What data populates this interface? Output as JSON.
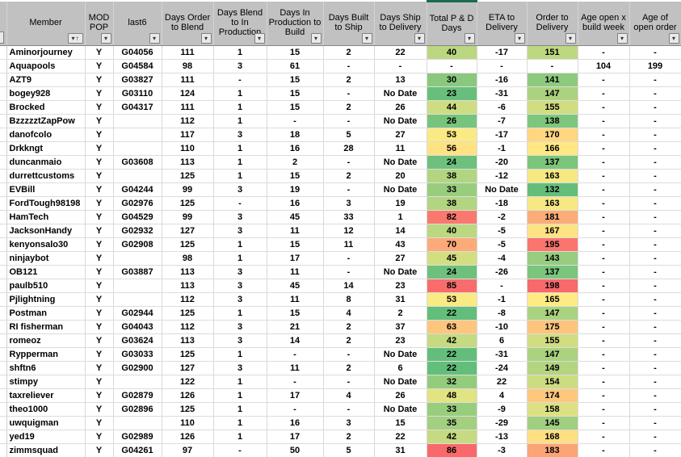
{
  "sheet": {
    "filter_icon": "▾",
    "sort_asc_icon": "↑",
    "color_scale": {
      "min_color": "#63BE7B",
      "mid_color": "#FFEB84",
      "max_color": "#F8696B",
      "header_accent": "#1d6b53",
      "ranges": {
        "total_pd": {
          "min": 22,
          "max": 86
        },
        "order_del": {
          "min": 132,
          "max": 198
        }
      }
    },
    "columns": [
      {
        "key": "member",
        "label": "Member",
        "sorted": true
      },
      {
        "key": "mod_pop",
        "label": "MOD POP"
      },
      {
        "key": "last6",
        "label": "last6"
      },
      {
        "key": "d_order_blend",
        "label": "Days Order to Blend"
      },
      {
        "key": "d_blend_prod",
        "label": "Days Blend to In Production"
      },
      {
        "key": "d_prod_build",
        "label": "Days In Production to Build"
      },
      {
        "key": "d_built_ship",
        "label": "Days Built to Ship"
      },
      {
        "key": "d_ship_del",
        "label": "Days Ship to Delivery"
      },
      {
        "key": "total_pd",
        "label": "Total P & D Days"
      },
      {
        "key": "eta_del",
        "label": "ETA to Delivery"
      },
      {
        "key": "order_del",
        "label": "Order to Delivery"
      },
      {
        "key": "age_build",
        "label": "Age open x build week"
      },
      {
        "key": "age_order",
        "label": "Age of open order"
      }
    ],
    "rows": [
      {
        "member": "Aminorjourney",
        "mod_pop": "Y",
        "last6": "G04056",
        "d_order_blend": 111,
        "d_blend_prod": 1,
        "d_prod_build": 15,
        "d_built_ship": 2,
        "d_ship_del": 22,
        "total_pd": 40,
        "eta_del": -17,
        "order_del": 151,
        "age_build": "-",
        "age_order": "-"
      },
      {
        "member": "Aquapools",
        "mod_pop": "Y",
        "last6": "G04584",
        "d_order_blend": 98,
        "d_blend_prod": 3,
        "d_prod_build": 61,
        "d_built_ship": "-",
        "d_ship_del": "-",
        "total_pd": "-",
        "eta_del": "-",
        "order_del": "-",
        "age_build": 104,
        "age_order": 199
      },
      {
        "member": "AZT9",
        "mod_pop": "Y",
        "last6": "G03827",
        "d_order_blend": 111,
        "d_blend_prod": "-",
        "d_prod_build": 15,
        "d_built_ship": 2,
        "d_ship_del": 13,
        "total_pd": 30,
        "eta_del": -16,
        "order_del": 141,
        "age_build": "-",
        "age_order": "-"
      },
      {
        "member": "bogey928",
        "mod_pop": "Y",
        "last6": "G03110",
        "d_order_blend": 124,
        "d_blend_prod": 1,
        "d_prod_build": 15,
        "d_built_ship": "-",
        "d_ship_del": "No Date",
        "total_pd": 23,
        "eta_del": -31,
        "order_del": 147,
        "age_build": "-",
        "age_order": "-"
      },
      {
        "member": "Brocked",
        "mod_pop": "Y",
        "last6": "G04317",
        "d_order_blend": 111,
        "d_blend_prod": 1,
        "d_prod_build": 15,
        "d_built_ship": 2,
        "d_ship_del": 26,
        "total_pd": 44,
        "eta_del": -6,
        "order_del": 155,
        "age_build": "-",
        "age_order": "-"
      },
      {
        "member": "BzzzzztZapPow",
        "mod_pop": "Y",
        "last6": "",
        "d_order_blend": 112,
        "d_blend_prod": 1,
        "d_prod_build": "-",
        "d_built_ship": "-",
        "d_ship_del": "No Date",
        "total_pd": 26,
        "eta_del": -7,
        "order_del": 138,
        "age_build": "-",
        "age_order": "-"
      },
      {
        "member": "danofcolo",
        "mod_pop": "Y",
        "last6": "",
        "d_order_blend": 117,
        "d_blend_prod": 3,
        "d_prod_build": 18,
        "d_built_ship": 5,
        "d_ship_del": 27,
        "total_pd": 53,
        "eta_del": -17,
        "order_del": 170,
        "age_build": "-",
        "age_order": "-"
      },
      {
        "member": "Drkkngt",
        "mod_pop": "Y",
        "last6": "",
        "d_order_blend": 110,
        "d_blend_prod": 1,
        "d_prod_build": 16,
        "d_built_ship": 28,
        "d_ship_del": 11,
        "total_pd": 56,
        "eta_del": -1,
        "order_del": 166,
        "age_build": "-",
        "age_order": "-"
      },
      {
        "member": "duncanmaio",
        "mod_pop": "Y",
        "last6": "G03608",
        "d_order_blend": 113,
        "d_blend_prod": 1,
        "d_prod_build": 2,
        "d_built_ship": "-",
        "d_ship_del": "No Date",
        "total_pd": 24,
        "eta_del": -20,
        "order_del": 137,
        "age_build": "-",
        "age_order": "-"
      },
      {
        "member": "durrettcustoms",
        "mod_pop": "Y",
        "last6": "",
        "d_order_blend": 125,
        "d_blend_prod": 1,
        "d_prod_build": 15,
        "d_built_ship": 2,
        "d_ship_del": 20,
        "total_pd": 38,
        "eta_del": -12,
        "order_del": 163,
        "age_build": "-",
        "age_order": "-"
      },
      {
        "member": "EVBill",
        "mod_pop": "Y",
        "last6": "G04244",
        "d_order_blend": 99,
        "d_blend_prod": 3,
        "d_prod_build": 19,
        "d_built_ship": "-",
        "d_ship_del": "No Date",
        "total_pd": 33,
        "eta_del": "No Date",
        "order_del": 132,
        "age_build": "-",
        "age_order": "-"
      },
      {
        "member": "FordTough98198",
        "mod_pop": "Y",
        "last6": "G02976",
        "d_order_blend": 125,
        "d_blend_prod": "-",
        "d_prod_build": 16,
        "d_built_ship": 3,
        "d_ship_del": 19,
        "total_pd": 38,
        "eta_del": -18,
        "order_del": 163,
        "age_build": "-",
        "age_order": "-"
      },
      {
        "member": "HamTech",
        "mod_pop": "Y",
        "last6": "G04529",
        "d_order_blend": 99,
        "d_blend_prod": 3,
        "d_prod_build": 45,
        "d_built_ship": 33,
        "d_ship_del": 1,
        "total_pd": 82,
        "eta_del": -2,
        "order_del": 181,
        "age_build": "-",
        "age_order": "-"
      },
      {
        "member": "JacksonHandy",
        "mod_pop": "Y",
        "last6": "G02932",
        "d_order_blend": 127,
        "d_blend_prod": 3,
        "d_prod_build": 11,
        "d_built_ship": 12,
        "d_ship_del": 14,
        "total_pd": 40,
        "eta_del": -5,
        "order_del": 167,
        "age_build": "-",
        "age_order": "-"
      },
      {
        "member": "kenyonsalo30",
        "mod_pop": "Y",
        "last6": "G02908",
        "d_order_blend": 125,
        "d_blend_prod": 1,
        "d_prod_build": 15,
        "d_built_ship": 11,
        "d_ship_del": 43,
        "total_pd": 70,
        "eta_del": -5,
        "order_del": 195,
        "age_build": "-",
        "age_order": "-"
      },
      {
        "member": "ninjaybot",
        "mod_pop": "Y",
        "last6": "",
        "d_order_blend": 98,
        "d_blend_prod": 1,
        "d_prod_build": 17,
        "d_built_ship": "-",
        "d_ship_del": 27,
        "total_pd": 45,
        "eta_del": -4,
        "order_del": 143,
        "age_build": "-",
        "age_order": "-"
      },
      {
        "member": "OB121",
        "mod_pop": "Y",
        "last6": "G03887",
        "d_order_blend": 113,
        "d_blend_prod": 3,
        "d_prod_build": 11,
        "d_built_ship": "-",
        "d_ship_del": "No Date",
        "total_pd": 24,
        "eta_del": -26,
        "order_del": 137,
        "age_build": "-",
        "age_order": "-"
      },
      {
        "member": "paulb510",
        "mod_pop": "Y",
        "last6": "",
        "d_order_blend": 113,
        "d_blend_prod": 3,
        "d_prod_build": 45,
        "d_built_ship": 14,
        "d_ship_del": 23,
        "total_pd": 85,
        "eta_del": "-",
        "order_del": 198,
        "age_build": "-",
        "age_order": "-"
      },
      {
        "member": "Pjlightning",
        "mod_pop": "Y",
        "last6": "",
        "d_order_blend": 112,
        "d_blend_prod": 3,
        "d_prod_build": 11,
        "d_built_ship": 8,
        "d_ship_del": 31,
        "total_pd": 53,
        "eta_del": -1,
        "order_del": 165,
        "age_build": "-",
        "age_order": "-"
      },
      {
        "member": "Postman",
        "mod_pop": "Y",
        "last6": "G02944",
        "d_order_blend": 125,
        "d_blend_prod": 1,
        "d_prod_build": 15,
        "d_built_ship": 4,
        "d_ship_del": 2,
        "total_pd": 22,
        "eta_del": -8,
        "order_del": 147,
        "age_build": "-",
        "age_order": "-"
      },
      {
        "member": "RI fisherman",
        "mod_pop": "Y",
        "last6": "G04043",
        "d_order_blend": 112,
        "d_blend_prod": 3,
        "d_prod_build": 21,
        "d_built_ship": 2,
        "d_ship_del": 37,
        "total_pd": 63,
        "eta_del": -10,
        "order_del": 175,
        "age_build": "-",
        "age_order": "-"
      },
      {
        "member": "romeoz",
        "mod_pop": "Y",
        "last6": "G03624",
        "d_order_blend": 113,
        "d_blend_prod": 3,
        "d_prod_build": 14,
        "d_built_ship": 2,
        "d_ship_del": 23,
        "total_pd": 42,
        "eta_del": 6,
        "order_del": 155,
        "age_build": "-",
        "age_order": "-"
      },
      {
        "member": "Rypperman",
        "mod_pop": "Y",
        "last6": "G03033",
        "d_order_blend": 125,
        "d_blend_prod": 1,
        "d_prod_build": "-",
        "d_built_ship": "-",
        "d_ship_del": "No Date",
        "total_pd": 22,
        "eta_del": -31,
        "order_del": 147,
        "age_build": "-",
        "age_order": "-"
      },
      {
        "member": "shftn6",
        "mod_pop": "Y",
        "last6": "G02900",
        "d_order_blend": 127,
        "d_blend_prod": 3,
        "d_prod_build": 11,
        "d_built_ship": 2,
        "d_ship_del": 6,
        "total_pd": 22,
        "eta_del": -24,
        "order_del": 149,
        "age_build": "-",
        "age_order": "-"
      },
      {
        "member": "stimpy",
        "mod_pop": "Y",
        "last6": "",
        "d_order_blend": 122,
        "d_blend_prod": 1,
        "d_prod_build": "-",
        "d_built_ship": "-",
        "d_ship_del": "No Date",
        "total_pd": 32,
        "eta_del": 22,
        "order_del": 154,
        "age_build": "-",
        "age_order": "-"
      },
      {
        "member": "taxreliever",
        "mod_pop": "Y",
        "last6": "G02879",
        "d_order_blend": 126,
        "d_blend_prod": 1,
        "d_prod_build": 17,
        "d_built_ship": 4,
        "d_ship_del": 26,
        "total_pd": 48,
        "eta_del": 4,
        "order_del": 174,
        "age_build": "-",
        "age_order": "-"
      },
      {
        "member": "theo1000",
        "mod_pop": "Y",
        "last6": "G02896",
        "d_order_blend": 125,
        "d_blend_prod": 1,
        "d_prod_build": "-",
        "d_built_ship": "-",
        "d_ship_del": "No Date",
        "total_pd": 33,
        "eta_del": -9,
        "order_del": 158,
        "age_build": "-",
        "age_order": "-"
      },
      {
        "member": "uwquigman",
        "mod_pop": "Y",
        "last6": "",
        "d_order_blend": 110,
        "d_blend_prod": 1,
        "d_prod_build": 16,
        "d_built_ship": 3,
        "d_ship_del": 15,
        "total_pd": 35,
        "eta_del": -29,
        "order_del": 145,
        "age_build": "-",
        "age_order": "-"
      },
      {
        "member": "yed19",
        "mod_pop": "Y",
        "last6": "G02989",
        "d_order_blend": 126,
        "d_blend_prod": 1,
        "d_prod_build": 17,
        "d_built_ship": 2,
        "d_ship_del": 22,
        "total_pd": 42,
        "eta_del": -13,
        "order_del": 168,
        "age_build": "-",
        "age_order": "-"
      },
      {
        "member": "zimmsquad",
        "mod_pop": "Y",
        "last6": "G04261",
        "d_order_blend": 97,
        "d_blend_prod": "-",
        "d_prod_build": 50,
        "d_built_ship": 5,
        "d_ship_del": 31,
        "total_pd": 86,
        "eta_del": -3,
        "order_del": 183,
        "age_build": "-",
        "age_order": "-"
      }
    ]
  }
}
